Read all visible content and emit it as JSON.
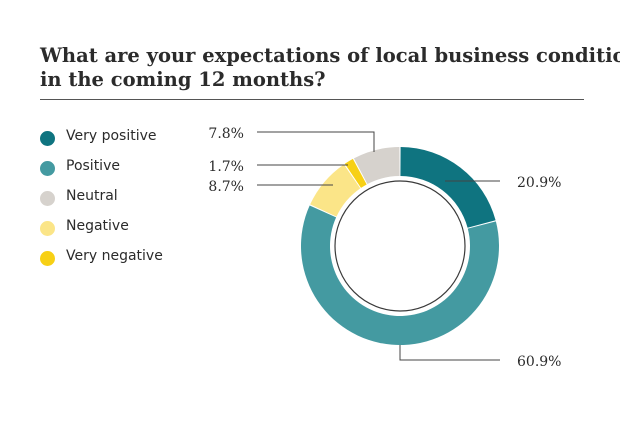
{
  "chart_data": {
    "type": "pie",
    "variant": "donut",
    "title_lines": [
      "What are your expectations of local business conditions",
      "in the coming 12 months?"
    ],
    "categories": [
      "Very positive",
      "Positive",
      "Neutral",
      "Negative",
      "Very negative"
    ],
    "values": [
      20.9,
      60.9,
      7.8,
      8.7,
      1.7
    ],
    "value_labels": [
      "20.9%",
      "60.9%",
      "7.8%",
      "8.7%",
      "1.7%"
    ],
    "colors": [
      "#0f7480",
      "#449aa1",
      "#d6d2cd",
      "#fbe588",
      "#f7d015"
    ],
    "legend_position": "left",
    "slice_order_clockwise_from_top": [
      "Very positive",
      "Positive",
      "Negative",
      "Very negative",
      "Neutral"
    ]
  }
}
